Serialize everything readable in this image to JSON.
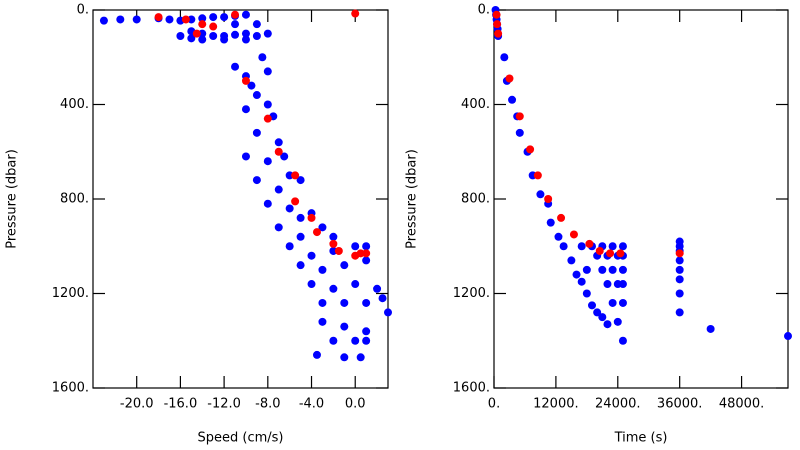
{
  "chart_data": [
    {
      "type": "scatter",
      "x_label": "Speed (cm/s)",
      "y_label": "Pressure (dbar)",
      "xlim": [
        -24,
        3
      ],
      "ylim": [
        1600,
        0
      ],
      "y_inverted": true,
      "xticks": [
        {
          "value": -20,
          "label": "-20.0"
        },
        {
          "value": -16,
          "label": "-16.0"
        },
        {
          "value": -12,
          "label": "-12.0"
        },
        {
          "value": -8,
          "label": "-8.0"
        },
        {
          "value": -4,
          "label": "-4.0"
        },
        {
          "value": 0,
          "label": "0.0"
        }
      ],
      "yticks": [
        {
          "value": 0,
          "label": "0."
        },
        {
          "value": 400,
          "label": "400."
        },
        {
          "value": 800,
          "label": "800."
        },
        {
          "value": 1200,
          "label": "1200."
        },
        {
          "value": 1600,
          "label": "1600."
        }
      ],
      "series": [
        {
          "color": "#0000ff",
          "x": [
            -23,
            -21.5,
            -20,
            -18,
            -17,
            -16,
            -15,
            -14,
            -13,
            -12,
            -11,
            -10,
            -15,
            -14,
            -13,
            -12,
            -11,
            -10,
            -9,
            -8,
            -16,
            -15,
            -14,
            -12,
            -10,
            -9,
            -11,
            -11,
            -10,
            -9.5,
            -8.5,
            -8,
            -9,
            -10,
            -8,
            -7.5,
            -9,
            -7,
            -10,
            -8,
            -6.5,
            -6,
            -9,
            -7,
            -5,
            -8,
            -6,
            -5,
            -4,
            -7,
            -5,
            -3,
            -2,
            -6,
            -4,
            -2,
            0,
            1,
            -5,
            -3,
            -1,
            1,
            -4,
            -2,
            0,
            2,
            -3,
            -1,
            1,
            2.5,
            3,
            -3,
            -1,
            1,
            -2,
            0,
            1,
            -3.5,
            -1,
            0.5
          ],
          "values": [
            45,
            40,
            40,
            35,
            40,
            45,
            40,
            35,
            30,
            30,
            25,
            20,
            90,
            100,
            110,
            110,
            105,
            100,
            110,
            100,
            110,
            120,
            125,
            125,
            125,
            60,
            60,
            240,
            280,
            320,
            200,
            260,
            360,
            420,
            400,
            450,
            520,
            560,
            620,
            640,
            620,
            700,
            720,
            760,
            720,
            820,
            840,
            880,
            860,
            920,
            960,
            920,
            960,
            1000,
            1040,
            1020,
            1000,
            1000,
            1080,
            1100,
            1080,
            1060,
            1160,
            1180,
            1160,
            1180,
            1240,
            1240,
            1240,
            1220,
            1280,
            1320,
            1340,
            1360,
            1400,
            1400,
            1400,
            1460,
            1470,
            1470
          ]
        },
        {
          "color": "#ff0000",
          "x": [
            -18,
            -15.5,
            -14,
            -13,
            -14.5,
            -11,
            0,
            -10,
            -8,
            -7,
            -5.5,
            -5.5,
            -4,
            -3.5,
            -2,
            -1.5,
            0,
            0.5,
            1
          ],
          "values": [
            30,
            40,
            60,
            70,
            100,
            20,
            15,
            300,
            460,
            600,
            700,
            810,
            880,
            940,
            990,
            1020,
            1040,
            1030,
            1030
          ]
        }
      ]
    },
    {
      "type": "scatter",
      "x_label": "Time (s)",
      "y_label": "Pressure (dbar)",
      "xlim": [
        0,
        57000
      ],
      "ylim": [
        1600,
        0
      ],
      "y_inverted": true,
      "xticks": [
        {
          "value": 0,
          "label": "0."
        },
        {
          "value": 12000,
          "label": "12000."
        },
        {
          "value": 24000,
          "label": "24000."
        },
        {
          "value": 36000,
          "label": "36000."
        },
        {
          "value": 48000,
          "label": "48000."
        }
      ],
      "yticks": [
        {
          "value": 0,
          "label": "0."
        },
        {
          "value": 400,
          "label": "400."
        },
        {
          "value": 800,
          "label": "800."
        },
        {
          "value": 1200,
          "label": "1200."
        },
        {
          "value": 1600,
          "label": "1600."
        }
      ],
      "series": [
        {
          "color": "#0000ff",
          "x": [
            300,
            400,
            500,
            600,
            700,
            800,
            2000,
            2500,
            3500,
            4500,
            5000,
            6500,
            7500,
            9000,
            10500,
            11000,
            12500,
            13500,
            15000,
            16000,
            17000,
            18000,
            19000,
            20000,
            21000,
            22000,
            17000,
            19000,
            21000,
            23000,
            25000,
            20000,
            22000,
            24000,
            25000,
            18000,
            21000,
            23000,
            25000,
            22000,
            24000,
            25000,
            23000,
            25000,
            24000,
            25000,
            36000,
            36000,
            36000,
            36000,
            36000,
            36000,
            36000,
            36000,
            42000,
            57000
          ],
          "values": [
            0,
            20,
            40,
            60,
            80,
            110,
            200,
            300,
            380,
            450,
            520,
            600,
            700,
            780,
            820,
            900,
            960,
            1000,
            1060,
            1120,
            1150,
            1200,
            1250,
            1280,
            1300,
            1330,
            1000,
            1000,
            1000,
            1000,
            1000,
            1040,
            1040,
            1040,
            1040,
            1100,
            1100,
            1100,
            1100,
            1160,
            1160,
            1160,
            1240,
            1240,
            1320,
            1400,
            980,
            1000,
            1020,
            1060,
            1100,
            1140,
            1200,
            1280,
            1350,
            1380
          ]
        },
        {
          "color": "#ff0000",
          "x": [
            500,
            600,
            800,
            3000,
            5000,
            7000,
            8500,
            10500,
            13000,
            15500,
            18500,
            20500,
            22500,
            24500,
            36000
          ],
          "values": [
            20,
            60,
            100,
            290,
            450,
            590,
            700,
            800,
            880,
            950,
            990,
            1020,
            1030,
            1030,
            1030
          ]
        }
      ]
    }
  ]
}
